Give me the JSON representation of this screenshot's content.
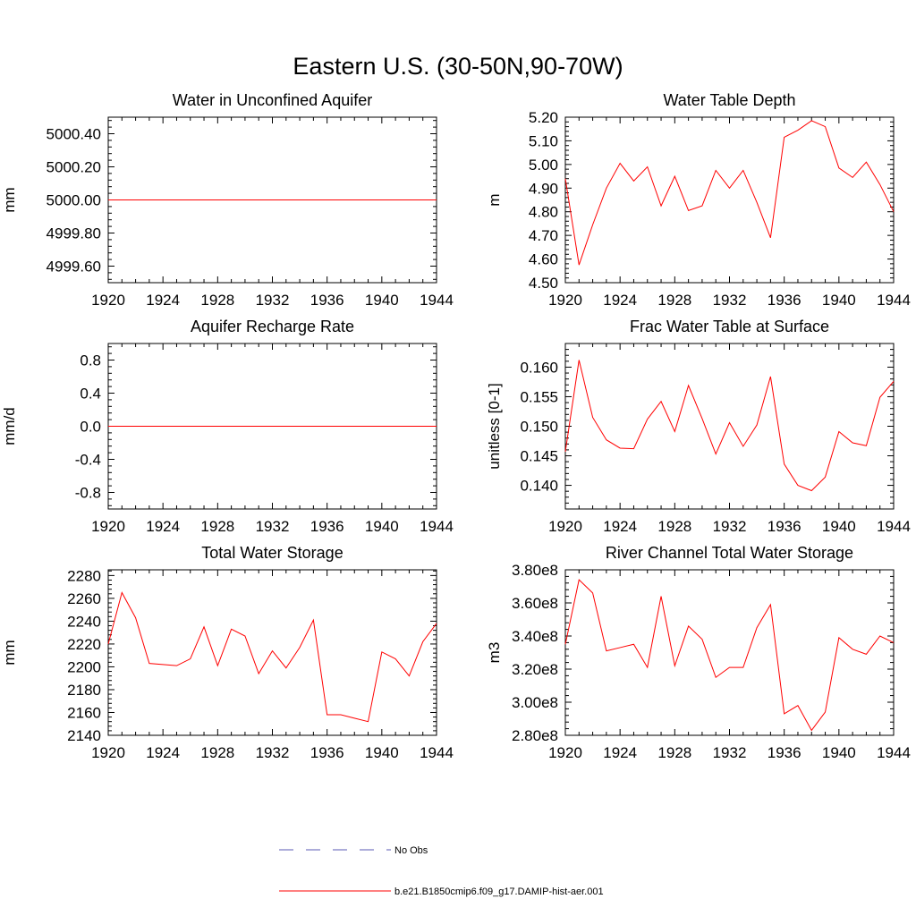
{
  "figure": {
    "title": "Eastern U.S. (30-50N,90-70W)",
    "line_color": "#ff0000",
    "obs_color": "#5a5ab4",
    "legend": [
      {
        "label": "No Obs",
        "style": "dashed",
        "color": "#5a5ab4"
      },
      {
        "label": "b.e21.B1850cmip6.f09_g17.DAMIP-hist-aer.001",
        "style": "solid",
        "color": "#ff0000"
      }
    ]
  },
  "chart_data": [
    {
      "type": "line",
      "title": "Water in Unconfined Aquifer",
      "ylabel": "mm",
      "xlim": [
        1920,
        1944
      ],
      "ylim": [
        4999.5,
        5000.5
      ],
      "xticks": [
        {
          "v": 1920,
          "label": "1920"
        },
        {
          "v": 1924,
          "label": "1924"
        },
        {
          "v": 1928,
          "label": "1928"
        },
        {
          "v": 1932,
          "label": "1932"
        },
        {
          "v": 1936,
          "label": "1936"
        },
        {
          "v": 1940,
          "label": "1940"
        },
        {
          "v": 1944,
          "label": "1944"
        }
      ],
      "yticks": [
        {
          "v": 4999.6,
          "label": "4999.60"
        },
        {
          "v": 4999.8,
          "label": "4999.80"
        },
        {
          "v": 5000.0,
          "label": "5000.00"
        },
        {
          "v": 5000.2,
          "label": "5000.20"
        },
        {
          "v": 5000.4,
          "label": "5000.40"
        }
      ],
      "series": [
        {
          "x": [
            1920,
            1921,
            1922,
            1923,
            1924,
            1925,
            1926,
            1927,
            1928,
            1929,
            1930,
            1931,
            1932,
            1933,
            1934,
            1935,
            1936,
            1937,
            1938,
            1939,
            1940,
            1941,
            1942,
            1943,
            1944
          ],
          "y": [
            5000,
            5000,
            5000,
            5000,
            5000,
            5000,
            5000,
            5000,
            5000,
            5000,
            5000,
            5000,
            5000,
            5000,
            5000,
            5000,
            5000,
            5000,
            5000,
            5000,
            5000,
            5000,
            5000,
            5000,
            5000
          ]
        }
      ]
    },
    {
      "type": "line",
      "title": "Water Table Depth",
      "ylabel": "m",
      "xlim": [
        1920,
        1944
      ],
      "ylim": [
        4.5,
        5.2
      ],
      "xticks": [
        {
          "v": 1920,
          "label": "1920"
        },
        {
          "v": 1924,
          "label": "1924"
        },
        {
          "v": 1928,
          "label": "1928"
        },
        {
          "v": 1932,
          "label": "1932"
        },
        {
          "v": 1936,
          "label": "1936"
        },
        {
          "v": 1940,
          "label": "1940"
        },
        {
          "v": 1944,
          "label": "1944"
        }
      ],
      "yticks": [
        {
          "v": 4.5,
          "label": "4.50"
        },
        {
          "v": 4.6,
          "label": "4.60"
        },
        {
          "v": 4.7,
          "label": "4.70"
        },
        {
          "v": 4.8,
          "label": "4.80"
        },
        {
          "v": 4.9,
          "label": "4.90"
        },
        {
          "v": 5.0,
          "label": "5.00"
        },
        {
          "v": 5.1,
          "label": "5.10"
        },
        {
          "v": 5.2,
          "label": "5.20"
        }
      ],
      "series": [
        {
          "x": [
            1920,
            1921,
            1922,
            1923,
            1924,
            1925,
            1926,
            1927,
            1928,
            1929,
            1930,
            1931,
            1932,
            1933,
            1934,
            1935,
            1936,
            1937,
            1938,
            1939,
            1940,
            1941,
            1942,
            1943,
            1944
          ],
          "y": [
            4.94,
            4.575,
            4.745,
            4.9,
            5.005,
            4.93,
            4.99,
            4.825,
            4.95,
            4.805,
            4.825,
            4.975,
            4.9,
            4.975,
            4.84,
            4.69,
            5.115,
            5.145,
            5.185,
            5.16,
            4.985,
            4.945,
            5.01,
            4.915,
            4.8
          ]
        }
      ]
    },
    {
      "type": "line",
      "title": "Aquifer Recharge Rate",
      "ylabel": "mm/d",
      "xlim": [
        1920,
        1944
      ],
      "ylim": [
        -1.0,
        1.0
      ],
      "xticks": [
        {
          "v": 1920,
          "label": "1920"
        },
        {
          "v": 1924,
          "label": "1924"
        },
        {
          "v": 1928,
          "label": "1928"
        },
        {
          "v": 1932,
          "label": "1932"
        },
        {
          "v": 1936,
          "label": "1936"
        },
        {
          "v": 1940,
          "label": "1940"
        },
        {
          "v": 1944,
          "label": "1944"
        }
      ],
      "yticks": [
        {
          "v": -0.8,
          "label": "-0.8"
        },
        {
          "v": -0.4,
          "label": "-0.4"
        },
        {
          "v": 0.0,
          "label": "0.0"
        },
        {
          "v": 0.4,
          "label": "0.4"
        },
        {
          "v": 0.8,
          "label": "0.8"
        }
      ],
      "series": [
        {
          "x": [
            1920,
            1921,
            1922,
            1923,
            1924,
            1925,
            1926,
            1927,
            1928,
            1929,
            1930,
            1931,
            1932,
            1933,
            1934,
            1935,
            1936,
            1937,
            1938,
            1939,
            1940,
            1941,
            1942,
            1943,
            1944
          ],
          "y": [
            0,
            0,
            0,
            0,
            0,
            0,
            0,
            0,
            0,
            0,
            0,
            0,
            0,
            0,
            0,
            0,
            0,
            0,
            0,
            0,
            0,
            0,
            0,
            0,
            0
          ]
        }
      ]
    },
    {
      "type": "line",
      "title": "Frac Water Table at Surface",
      "ylabel": "unitless [0-1]",
      "xlim": [
        1920,
        1944
      ],
      "ylim": [
        0.136,
        0.164
      ],
      "xticks": [
        {
          "v": 1920,
          "label": "1920"
        },
        {
          "v": 1924,
          "label": "1924"
        },
        {
          "v": 1928,
          "label": "1928"
        },
        {
          "v": 1932,
          "label": "1932"
        },
        {
          "v": 1936,
          "label": "1936"
        },
        {
          "v": 1940,
          "label": "1940"
        },
        {
          "v": 1944,
          "label": "1944"
        }
      ],
      "yticks": [
        {
          "v": 0.14,
          "label": "0.140"
        },
        {
          "v": 0.145,
          "label": "0.145"
        },
        {
          "v": 0.15,
          "label": "0.150"
        },
        {
          "v": 0.155,
          "label": "0.155"
        },
        {
          "v": 0.16,
          "label": "0.160"
        }
      ],
      "series": [
        {
          "x": [
            1920,
            1921,
            1922,
            1923,
            1924,
            1925,
            1926,
            1927,
            1928,
            1929,
            1930,
            1931,
            1932,
            1933,
            1934,
            1935,
            1936,
            1937,
            1938,
            1939,
            1940,
            1941,
            1942,
            1943,
            1944
          ],
          "y": [
            0.1457,
            0.1612,
            0.1515,
            0.1477,
            0.1463,
            0.1462,
            0.1512,
            0.1542,
            0.1491,
            0.1569,
            0.1513,
            0.1453,
            0.1506,
            0.1466,
            0.1502,
            0.1584,
            0.1436,
            0.14,
            0.1391,
            0.1414,
            0.1491,
            0.1472,
            0.1467,
            0.1549,
            0.1576
          ]
        }
      ]
    },
    {
      "type": "line",
      "title": "Total Water Storage",
      "ylabel": "mm",
      "xlim": [
        1920,
        1944
      ],
      "ylim": [
        2140,
        2285
      ],
      "xticks": [
        {
          "v": 1920,
          "label": "1920"
        },
        {
          "v": 1924,
          "label": "1924"
        },
        {
          "v": 1928,
          "label": "1928"
        },
        {
          "v": 1932,
          "label": "1932"
        },
        {
          "v": 1936,
          "label": "1936"
        },
        {
          "v": 1940,
          "label": "1940"
        },
        {
          "v": 1944,
          "label": "1944"
        }
      ],
      "yticks": [
        {
          "v": 2140,
          "label": "2140"
        },
        {
          "v": 2160,
          "label": "2160"
        },
        {
          "v": 2180,
          "label": "2180"
        },
        {
          "v": 2200,
          "label": "2200"
        },
        {
          "v": 2220,
          "label": "2220"
        },
        {
          "v": 2240,
          "label": "2240"
        },
        {
          "v": 2260,
          "label": "2260"
        },
        {
          "v": 2280,
          "label": "2280"
        }
      ],
      "series": [
        {
          "x": [
            1920,
            1921,
            1922,
            1923,
            1924,
            1925,
            1926,
            1927,
            1928,
            1929,
            1930,
            1931,
            1932,
            1933,
            1934,
            1935,
            1936,
            1937,
            1938,
            1939,
            1940,
            1941,
            1942,
            1943,
            1944
          ],
          "y": [
            2220,
            2265,
            2243,
            2203,
            2202,
            2201,
            2207,
            2235,
            2201,
            2233,
            2227,
            2194,
            2214,
            2199,
            2217,
            2241,
            2158,
            2158,
            2155,
            2152,
            2213,
            2207,
            2192,
            2222,
            2238
          ]
        }
      ]
    },
    {
      "type": "line",
      "title": "River Channel Total Water Storage",
      "ylabel": "m3",
      "xlim": [
        1920,
        1944
      ],
      "ylim": [
        280000000.0,
        380000000.0
      ],
      "xticks": [
        {
          "v": 1920,
          "label": "1920"
        },
        {
          "v": 1924,
          "label": "1924"
        },
        {
          "v": 1928,
          "label": "1928"
        },
        {
          "v": 1932,
          "label": "1932"
        },
        {
          "v": 1936,
          "label": "1936"
        },
        {
          "v": 1940,
          "label": "1940"
        },
        {
          "v": 1944,
          "label": "1944"
        }
      ],
      "yticks": [
        {
          "v": 280000000.0,
          "label": "2.80e8"
        },
        {
          "v": 300000000.0,
          "label": "3.00e8"
        },
        {
          "v": 320000000.0,
          "label": "3.20e8"
        },
        {
          "v": 340000000.0,
          "label": "3.40e8"
        },
        {
          "v": 360000000.0,
          "label": "3.60e8"
        },
        {
          "v": 380000000.0,
          "label": "3.80e8"
        }
      ],
      "series": [
        {
          "x": [
            1920,
            1921,
            1922,
            1923,
            1924,
            1925,
            1926,
            1927,
            1928,
            1929,
            1930,
            1931,
            1932,
            1933,
            1934,
            1935,
            1936,
            1937,
            1938,
            1939,
            1940,
            1941,
            1942,
            1943,
            1944
          ],
          "y": [
            335000000.0,
            374000000.0,
            366000000.0,
            331000000.0,
            333000000.0,
            335000000.0,
            321000000.0,
            364000000.0,
            322000000.0,
            346000000.0,
            338000000.0,
            315000000.0,
            321000000.0,
            321000000.0,
            345000000.0,
            359000000.0,
            293000000.0,
            298000000.0,
            283000000.0,
            294000000.0,
            339000000.0,
            332000000.0,
            329000000.0,
            340000000.0,
            336000000.0
          ]
        }
      ]
    }
  ]
}
